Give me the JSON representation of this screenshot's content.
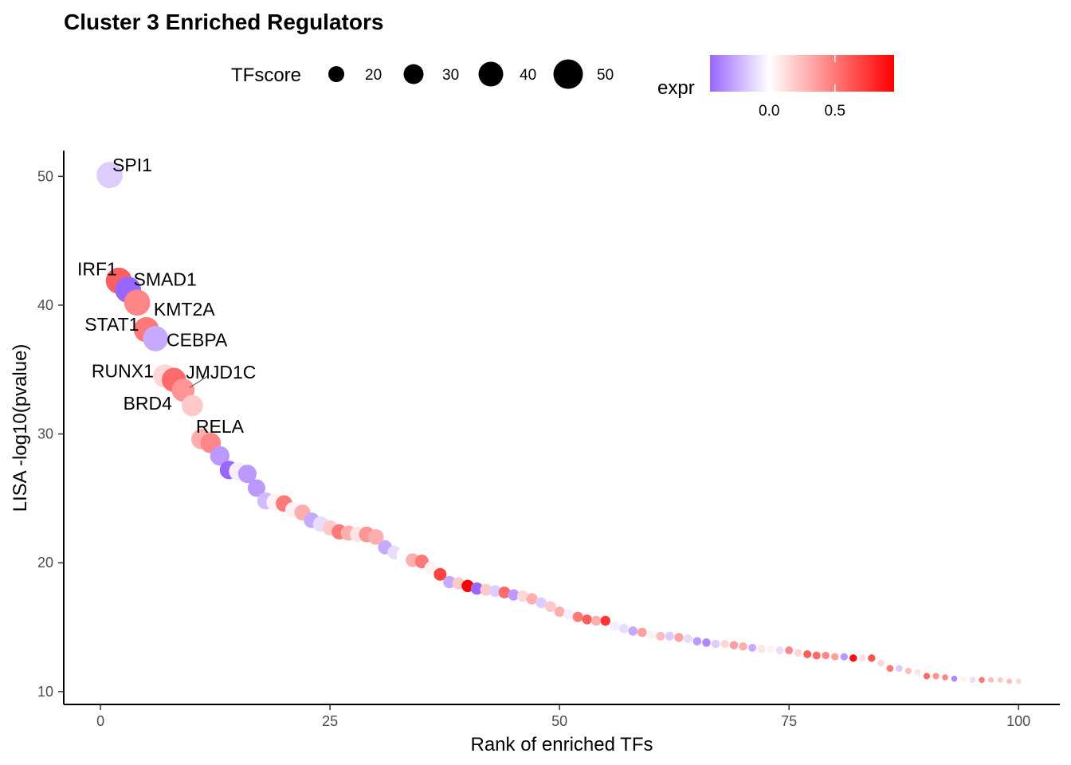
{
  "chart_data": {
    "type": "scatter",
    "title": "Cluster 3 Enriched Regulators",
    "xlabel": "Rank of enriched TFs",
    "ylabel": "LISA -log10(pvalue)",
    "xlim": [
      -4,
      104.5
    ],
    "ylim": [
      9,
      52
    ],
    "xticks": [
      0,
      25,
      50,
      75,
      100
    ],
    "yticks": [
      10,
      20,
      30,
      40,
      50
    ],
    "grid": false,
    "legend_position": "top",
    "size_legend": {
      "title": "TFscore",
      "values": [
        20,
        30,
        40,
        50
      ]
    },
    "color_legend": {
      "title": "expr",
      "ticks": [
        0.0,
        0.5
      ],
      "tick_labels": [
        "0.0",
        "0.5"
      ],
      "range": [
        -0.45,
        0.95
      ],
      "colors": {
        "low": "#9966ff",
        "mid": "#ffffff",
        "high": "#ff0000"
      }
    },
    "points": [
      {
        "rank": 1,
        "pval": 50.1,
        "expr": -0.15,
        "score": 52
      },
      {
        "rank": 2,
        "pval": 41.9,
        "expr": 0.6,
        "score": 52
      },
      {
        "rank": 3,
        "pval": 41.2,
        "expr": -0.45,
        "score": 52
      },
      {
        "rank": 4,
        "pval": 40.2,
        "expr": 0.45,
        "score": 52
      },
      {
        "rank": 5,
        "pval": 38.1,
        "expr": 0.5,
        "score": 50
      },
      {
        "rank": 6,
        "pval": 37.4,
        "expr": -0.25,
        "score": 50
      },
      {
        "rank": 7,
        "pval": 34.5,
        "expr": 0.15,
        "score": 46
      },
      {
        "rank": 8,
        "pval": 34.2,
        "expr": 0.55,
        "score": 48
      },
      {
        "rank": 9,
        "pval": 33.4,
        "expr": 0.4,
        "score": 45
      },
      {
        "rank": 10,
        "pval": 32.2,
        "expr": 0.2,
        "score": 42
      },
      {
        "rank": 11,
        "pval": 29.6,
        "expr": 0.3,
        "score": 40
      },
      {
        "rank": 12,
        "pval": 29.3,
        "expr": 0.45,
        "score": 40
      },
      {
        "rank": 13,
        "pval": 28.3,
        "expr": -0.3,
        "score": 38
      },
      {
        "rank": 14,
        "pval": 27.2,
        "expr": -0.45,
        "score": 36
      },
      {
        "rank": 15,
        "pval": 27.1,
        "expr": -0.05,
        "score": 36
      },
      {
        "rank": 16,
        "pval": 26.9,
        "expr": -0.3,
        "score": 36
      },
      {
        "rank": 17,
        "pval": 25.8,
        "expr": -0.3,
        "score": 34
      },
      {
        "rank": 18,
        "pval": 24.8,
        "expr": -0.2,
        "score": 33
      },
      {
        "rank": 19,
        "pval": 24.7,
        "expr": 0.05,
        "score": 33
      },
      {
        "rank": 20,
        "pval": 24.6,
        "expr": 0.5,
        "score": 32
      },
      {
        "rank": 21,
        "pval": 24.1,
        "expr": 0.05,
        "score": 31
      },
      {
        "rank": 22,
        "pval": 23.9,
        "expr": 0.3,
        "score": 31
      },
      {
        "rank": 23,
        "pval": 23.3,
        "expr": -0.25,
        "score": 30
      },
      {
        "rank": 24,
        "pval": 23.0,
        "expr": -0.1,
        "score": 30
      },
      {
        "rank": 25,
        "pval": 22.7,
        "expr": 0.2,
        "score": 29
      },
      {
        "rank": 26,
        "pval": 22.4,
        "expr": 0.5,
        "score": 29
      },
      {
        "rank": 27,
        "pval": 22.3,
        "expr": 0.3,
        "score": 29
      },
      {
        "rank": 28,
        "pval": 22.2,
        "expr": 0.1,
        "score": 29
      },
      {
        "rank": 29,
        "pval": 22.2,
        "expr": 0.4,
        "score": 30
      },
      {
        "rank": 30,
        "pval": 22.0,
        "expr": 0.3,
        "score": 30
      },
      {
        "rank": 31,
        "pval": 21.2,
        "expr": -0.25,
        "score": 27
      },
      {
        "rank": 32,
        "pval": 20.8,
        "expr": -0.1,
        "score": 26
      },
      {
        "rank": 33,
        "pval": 20.6,
        "expr": 0.0,
        "score": 26
      },
      {
        "rank": 34,
        "pval": 20.2,
        "expr": 0.3,
        "score": 26
      },
      {
        "rank": 35,
        "pval": 20.1,
        "expr": 0.5,
        "score": 26
      },
      {
        "rank": 36,
        "pval": 19.6,
        "expr": 0.05,
        "score": 24
      },
      {
        "rank": 37,
        "pval": 19.1,
        "expr": 0.7,
        "score": 24
      },
      {
        "rank": 38,
        "pval": 18.5,
        "expr": -0.25,
        "score": 23
      },
      {
        "rank": 39,
        "pval": 18.4,
        "expr": 0.2,
        "score": 23
      },
      {
        "rank": 40,
        "pval": 18.2,
        "expr": 0.95,
        "score": 23
      },
      {
        "rank": 41,
        "pval": 18.0,
        "expr": -0.45,
        "score": 23
      },
      {
        "rank": 42,
        "pval": 17.9,
        "expr": 0.2,
        "score": 22
      },
      {
        "rank": 43,
        "pval": 17.8,
        "expr": -0.15,
        "score": 22
      },
      {
        "rank": 44,
        "pval": 17.7,
        "expr": 0.55,
        "score": 22
      },
      {
        "rank": 45,
        "pval": 17.5,
        "expr": -0.3,
        "score": 21
      },
      {
        "rank": 46,
        "pval": 17.4,
        "expr": 0.15,
        "score": 21
      },
      {
        "rank": 47,
        "pval": 17.2,
        "expr": 0.3,
        "score": 21
      },
      {
        "rank": 48,
        "pval": 16.9,
        "expr": -0.15,
        "score": 20
      },
      {
        "rank": 49,
        "pval": 16.6,
        "expr": 0.2,
        "score": 20
      },
      {
        "rank": 50,
        "pval": 16.2,
        "expr": 0.3,
        "score": 19
      },
      {
        "rank": 51,
        "pval": 16.0,
        "expr": -0.05,
        "score": 19
      },
      {
        "rank": 52,
        "pval": 15.8,
        "expr": 0.5,
        "score": 19
      },
      {
        "rank": 53,
        "pval": 15.6,
        "expr": 0.6,
        "score": 18
      },
      {
        "rank": 54,
        "pval": 15.5,
        "expr": 0.3,
        "score": 18
      },
      {
        "rank": 55,
        "pval": 15.5,
        "expr": 0.75,
        "score": 18
      },
      {
        "rank": 56,
        "pval": 15.1,
        "expr": -0.05,
        "score": 17
      },
      {
        "rank": 57,
        "pval": 14.9,
        "expr": -0.1,
        "score": 17
      },
      {
        "rank": 58,
        "pval": 14.7,
        "expr": -0.25,
        "score": 17
      },
      {
        "rank": 59,
        "pval": 14.6,
        "expr": 0.35,
        "score": 17
      },
      {
        "rank": 60,
        "pval": 14.4,
        "expr": 0.05,
        "score": 16
      },
      {
        "rank": 61,
        "pval": 14.3,
        "expr": 0.25,
        "score": 16
      },
      {
        "rank": 62,
        "pval": 14.3,
        "expr": -0.15,
        "score": 16
      },
      {
        "rank": 63,
        "pval": 14.2,
        "expr": 0.35,
        "score": 16
      },
      {
        "rank": 64,
        "pval": 14.1,
        "expr": -0.1,
        "score": 16
      },
      {
        "rank": 65,
        "pval": 13.9,
        "expr": -0.3,
        "score": 15
      },
      {
        "rank": 66,
        "pval": 13.8,
        "expr": -0.35,
        "score": 15
      },
      {
        "rank": 67,
        "pval": 13.7,
        "expr": -0.15,
        "score": 15
      },
      {
        "rank": 68,
        "pval": 13.7,
        "expr": 0.15,
        "score": 15
      },
      {
        "rank": 69,
        "pval": 13.6,
        "expr": 0.35,
        "score": 15
      },
      {
        "rank": 70,
        "pval": 13.5,
        "expr": 0.3,
        "score": 15
      },
      {
        "rank": 71,
        "pval": 13.4,
        "expr": -0.25,
        "score": 14
      },
      {
        "rank": 72,
        "pval": 13.3,
        "expr": 0.1,
        "score": 14
      },
      {
        "rank": 73,
        "pval": 13.3,
        "expr": 0.05,
        "score": 14
      },
      {
        "rank": 74,
        "pval": 13.2,
        "expr": -0.1,
        "score": 14
      },
      {
        "rank": 75,
        "pval": 13.2,
        "expr": 0.45,
        "score": 14
      },
      {
        "rank": 76,
        "pval": 13.0,
        "expr": 0.15,
        "score": 14
      },
      {
        "rank": 77,
        "pval": 12.9,
        "expr": 0.6,
        "score": 14
      },
      {
        "rank": 78,
        "pval": 12.8,
        "expr": 0.55,
        "score": 14
      },
      {
        "rank": 79,
        "pval": 12.8,
        "expr": 0.45,
        "score": 13
      },
      {
        "rank": 80,
        "pval": 12.7,
        "expr": 0.35,
        "score": 13
      },
      {
        "rank": 81,
        "pval": 12.7,
        "expr": -0.3,
        "score": 13
      },
      {
        "rank": 82,
        "pval": 12.6,
        "expr": 0.9,
        "score": 13
      },
      {
        "rank": 83,
        "pval": 12.6,
        "expr": 0.1,
        "score": 13
      },
      {
        "rank": 84,
        "pval": 12.6,
        "expr": 0.65,
        "score": 13
      },
      {
        "rank": 85,
        "pval": 12.2,
        "expr": 0.15,
        "score": 12
      },
      {
        "rank": 86,
        "pval": 11.8,
        "expr": 0.5,
        "score": 12
      },
      {
        "rank": 87,
        "pval": 11.8,
        "expr": -0.15,
        "score": 12
      },
      {
        "rank": 88,
        "pval": 11.6,
        "expr": 0.25,
        "score": 11
      },
      {
        "rank": 89,
        "pval": 11.5,
        "expr": 0.1,
        "score": 11
      },
      {
        "rank": 90,
        "pval": 11.2,
        "expr": 0.55,
        "score": 11
      },
      {
        "rank": 91,
        "pval": 11.2,
        "expr": 0.4,
        "score": 11
      },
      {
        "rank": 92,
        "pval": 11.1,
        "expr": 0.45,
        "score": 10
      },
      {
        "rank": 93,
        "pval": 11.0,
        "expr": -0.35,
        "score": 10
      },
      {
        "rank": 94,
        "pval": 11.0,
        "expr": 0.05,
        "score": 10
      },
      {
        "rank": 95,
        "pval": 10.9,
        "expr": -0.1,
        "score": 10
      },
      {
        "rank": 96,
        "pval": 10.9,
        "expr": 0.5,
        "score": 10
      },
      {
        "rank": 97,
        "pval": 10.9,
        "expr": 0.25,
        "score": 9
      },
      {
        "rank": 98,
        "pval": 10.9,
        "expr": 0.2,
        "score": 9
      },
      {
        "rank": 99,
        "pval": 10.8,
        "expr": 0.25,
        "score": 9
      },
      {
        "rank": 100,
        "pval": 10.8,
        "expr": 0.15,
        "score": 9
      }
    ],
    "labels": [
      {
        "text": "SPI1",
        "rank": 1,
        "pval": 50.1,
        "lx": 1.3,
        "ly": 50.9,
        "anchor": "start"
      },
      {
        "text": "IRF1",
        "rank": 2,
        "pval": 41.9,
        "lx": 1.8,
        "ly": 42.8,
        "anchor": "end"
      },
      {
        "text": "SMAD1",
        "rank": 3,
        "pval": 41.2,
        "lx": 3.6,
        "ly": 42.0,
        "anchor": "start"
      },
      {
        "text": "KMT2A",
        "rank": 4,
        "pval": 40.2,
        "lx": 5.8,
        "ly": 39.7,
        "anchor": "start"
      },
      {
        "text": "STAT1",
        "rank": 5,
        "pval": 38.1,
        "lx": 4.2,
        "ly": 38.5,
        "anchor": "end"
      },
      {
        "text": "CEBPA",
        "rank": 6,
        "pval": 37.4,
        "lx": 7.2,
        "ly": 37.3,
        "anchor": "start"
      },
      {
        "text": "RUNX1",
        "rank": 7,
        "pval": 34.5,
        "lx": 5.8,
        "ly": 34.9,
        "anchor": "end"
      },
      {
        "text": "JMJD1C",
        "rank": 8,
        "pval": 34.2,
        "lx": 9.3,
        "ly": 34.8,
        "anchor": "start",
        "line_to": [
          9.7,
          33.6
        ]
      },
      {
        "text": "BRD4",
        "rank": 9,
        "pval": 33.4,
        "lx": 7.8,
        "ly": 32.4,
        "anchor": "end"
      },
      {
        "text": "RELA",
        "rank": 12,
        "pval": 29.3,
        "lx": 10.4,
        "ly": 30.6,
        "anchor": "start"
      }
    ]
  }
}
